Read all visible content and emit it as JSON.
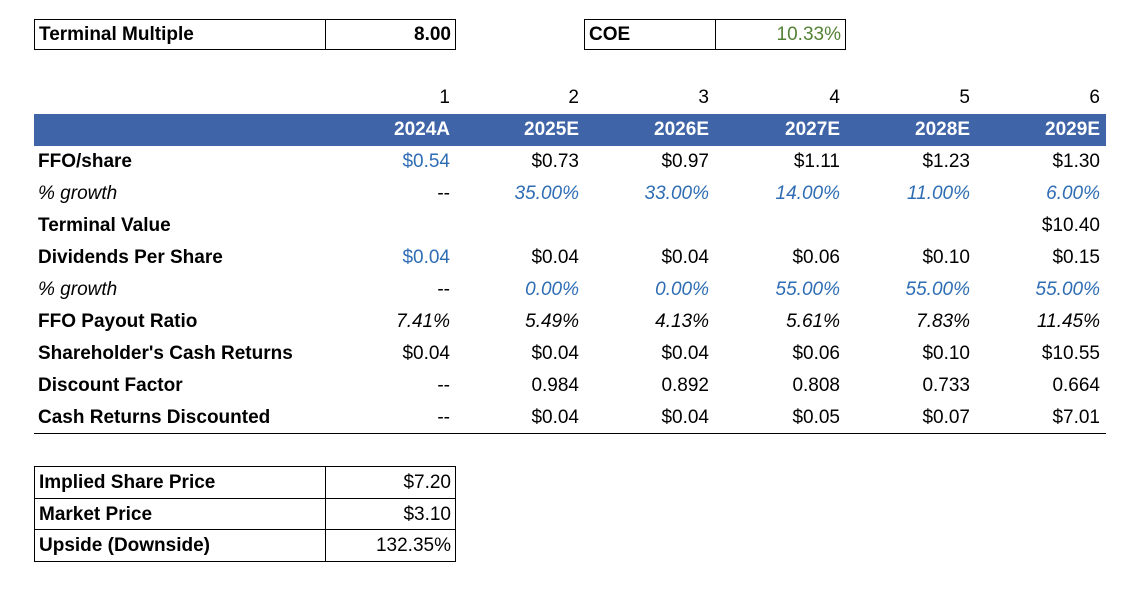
{
  "top": {
    "terminal_multiple": {
      "label": "Terminal Multiple",
      "value": "8.00"
    },
    "coe": {
      "label": "COE",
      "value": "10.33%"
    }
  },
  "periods": [
    "1",
    "2",
    "3",
    "4",
    "5",
    "6"
  ],
  "years": [
    "2024A",
    "2025E",
    "2026E",
    "2027E",
    "2028E",
    "2029E"
  ],
  "rows": {
    "ffo": {
      "label": "FFO/share",
      "values": [
        "$0.54",
        "$0.73",
        "$0.97",
        "$1.11",
        "$1.23",
        "$1.30"
      ]
    },
    "ffo_growth": {
      "label": "% growth",
      "values": [
        "--",
        "35.00%",
        "33.00%",
        "14.00%",
        "11.00%",
        "6.00%"
      ]
    },
    "terminal_value": {
      "label": "Terminal Value",
      "values": [
        "",
        "",
        "",
        "",
        "",
        "$10.40"
      ]
    },
    "dps": {
      "label": "Dividends Per Share",
      "values": [
        "$0.04",
        "$0.04",
        "$0.04",
        "$0.06",
        "$0.10",
        "$0.15"
      ]
    },
    "dps_growth": {
      "label": "% growth",
      "values": [
        "--",
        "0.00%",
        "0.00%",
        "55.00%",
        "55.00%",
        "55.00%"
      ]
    },
    "payout": {
      "label": "FFO Payout Ratio",
      "values": [
        "7.41%",
        "5.49%",
        "4.13%",
        "5.61%",
        "7.83%",
        "11.45%"
      ]
    },
    "cash_returns": {
      "label": "Shareholder's Cash Returns",
      "values": [
        "$0.04",
        "$0.04",
        "$0.04",
        "$0.06",
        "$0.10",
        "$10.55"
      ]
    },
    "discount_factor": {
      "label": "Discount Factor",
      "values": [
        "--",
        "0.984",
        "0.892",
        "0.808",
        "0.733",
        "0.664"
      ]
    },
    "discounted": {
      "label": "Cash Returns Discounted",
      "values": [
        "--",
        "$0.04",
        "$0.04",
        "$0.05",
        "$0.07",
        "$7.01"
      ]
    }
  },
  "summary": {
    "implied": {
      "label": "Implied Share Price",
      "value": "$7.20"
    },
    "market": {
      "label": "Market Price",
      "value": "$3.10"
    },
    "upside": {
      "label": "Upside (Downside)",
      "value": "132.35%"
    }
  },
  "colors": {
    "header_bg": "#3f64a8",
    "input_blue": "#2e6db4",
    "coe_green": "#548235"
  }
}
